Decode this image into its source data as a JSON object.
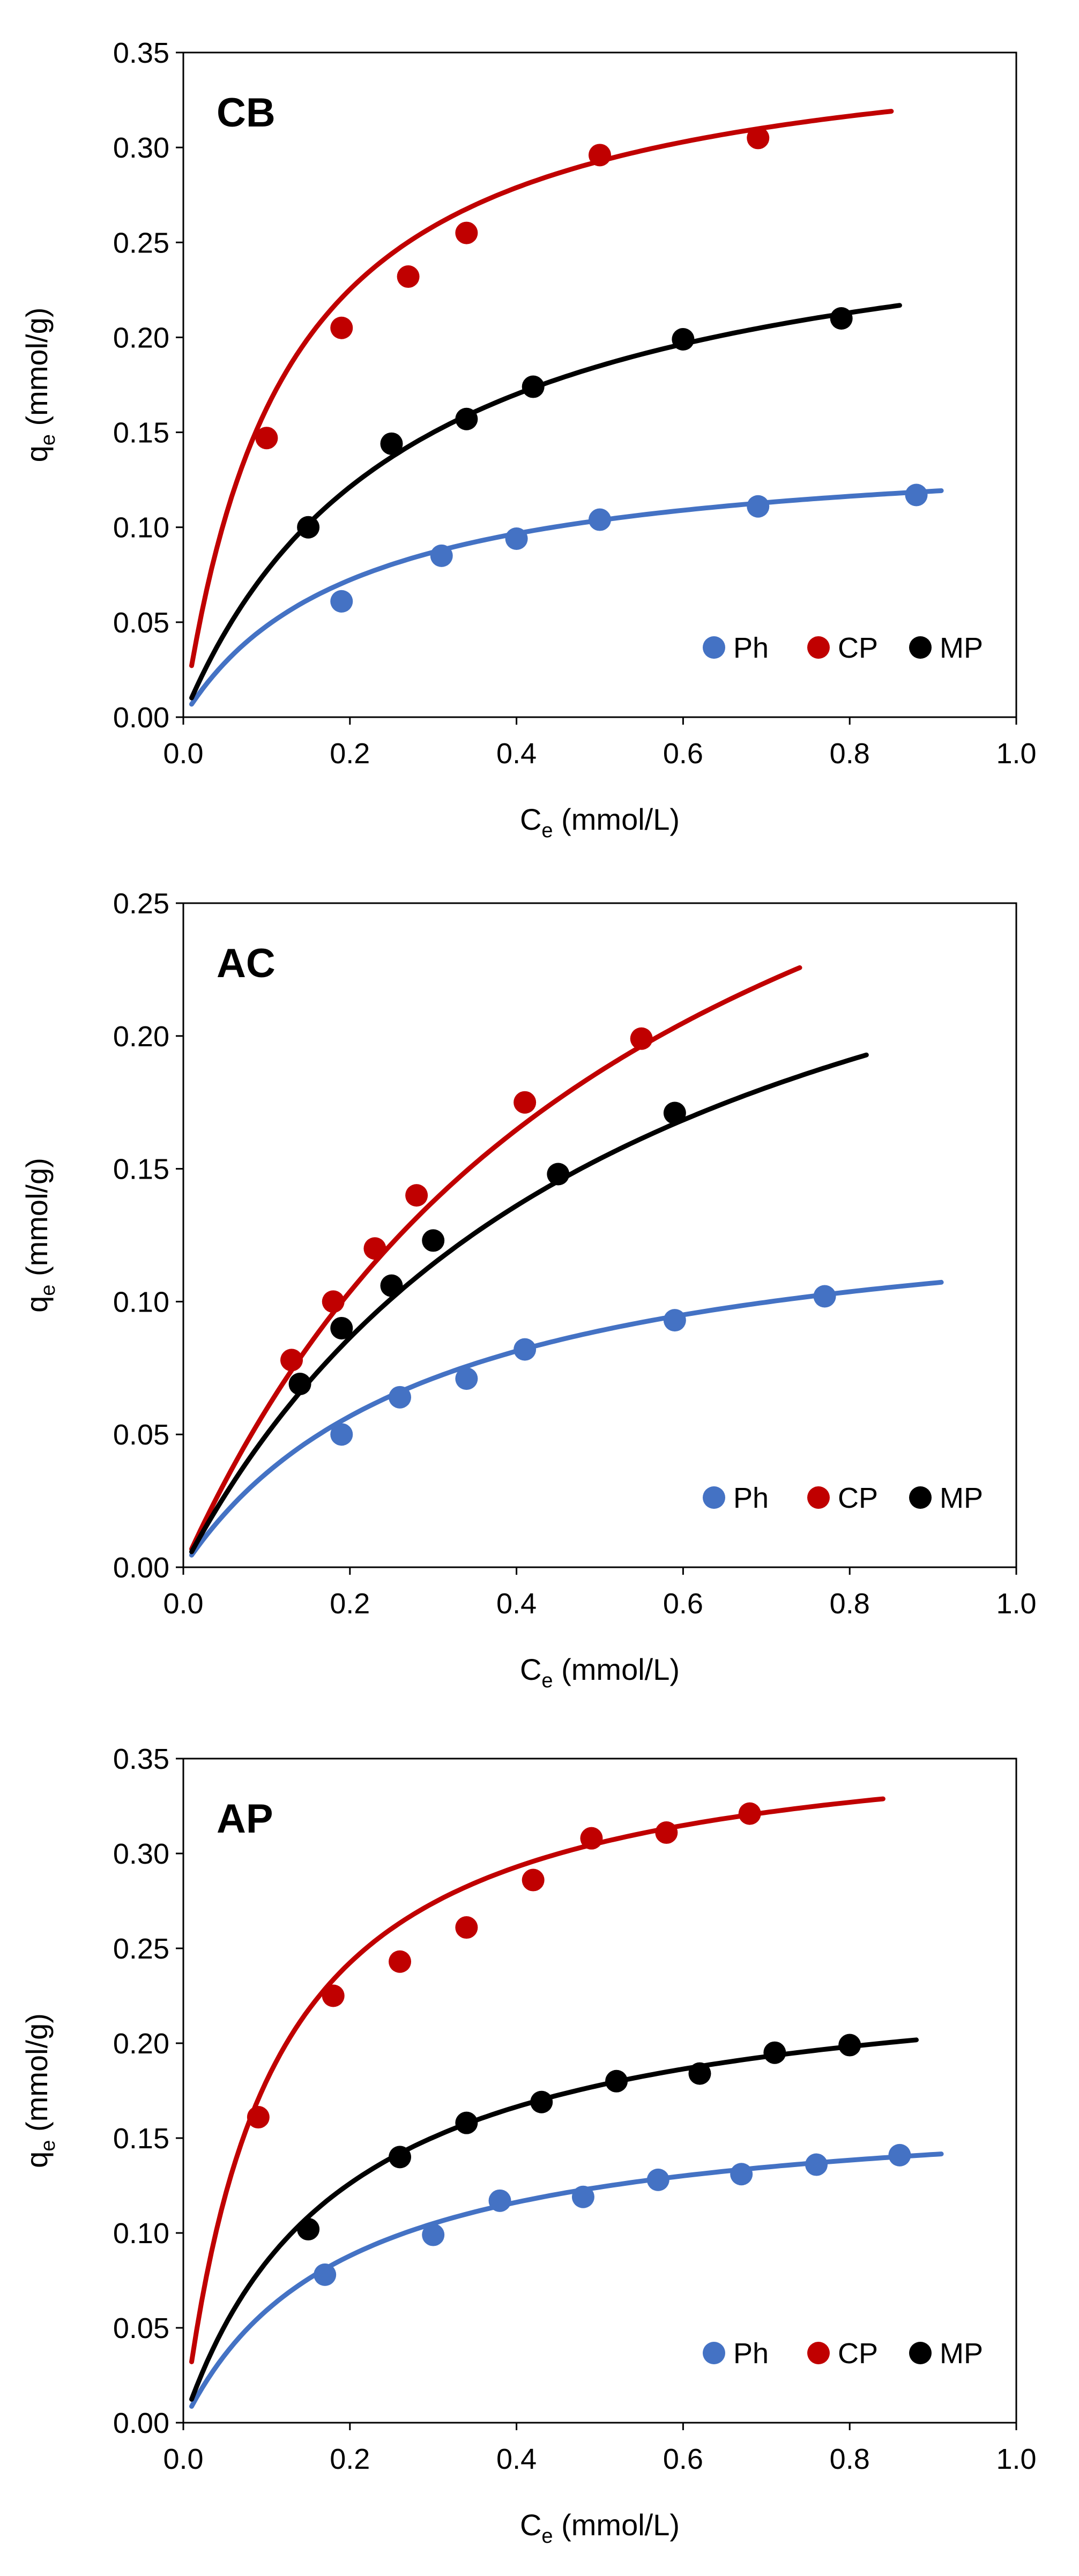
{
  "chart_data": [
    {
      "type": "scatter",
      "title": "CB",
      "xlabel_main": "C",
      "xlabel_sub": "e",
      "xlabel_rest": " (mmol/L)",
      "ylabel_main": "q",
      "ylabel_sub": "e",
      "ylabel_rest": " (mmol/g)",
      "xlim": [
        0,
        1.0
      ],
      "ylim": [
        0,
        0.35
      ],
      "xticks": [
        "0.0",
        "0.2",
        "0.4",
        "0.6",
        "0.8",
        "1.0"
      ],
      "yticks": [
        "0.00",
        "0.05",
        "0.10",
        "0.15",
        "0.20",
        "0.25",
        "0.30",
        "0.35"
      ],
      "legend_position": "bottom-right",
      "series": [
        {
          "name": "Ph",
          "color": "#4472C4",
          "x": [
            0.19,
            0.31,
            0.4,
            0.5,
            0.69,
            0.88
          ],
          "y": [
            0.061,
            0.085,
            0.094,
            0.104,
            0.111,
            0.117
          ],
          "fit": {
            "qmax": 0.146,
            "K": 4.9,
            "xrange": [
              0.01,
              0.91
            ]
          }
        },
        {
          "name": "CP",
          "color": "#C00000",
          "x": [
            0.1,
            0.19,
            0.27,
            0.34,
            0.5,
            0.69
          ],
          "y": [
            0.147,
            0.205,
            0.232,
            0.255,
            0.296,
            0.305
          ],
          "fit": {
            "qmax": 0.366,
            "K": 8.0,
            "xrange": [
              0.01,
              0.85
            ]
          }
        },
        {
          "name": "MP",
          "color": "#000000",
          "x": [
            0.15,
            0.25,
            0.34,
            0.42,
            0.6,
            0.79
          ],
          "y": [
            0.1,
            0.144,
            0.157,
            0.174,
            0.199,
            0.21
          ],
          "fit": {
            "qmax": 0.285,
            "K": 3.7,
            "xrange": [
              0.01,
              0.86
            ]
          }
        }
      ]
    },
    {
      "type": "scatter",
      "title": "AC",
      "xlabel_main": "C",
      "xlabel_sub": "e",
      "xlabel_rest": " (mmol/L)",
      "ylabel_main": "q",
      "ylabel_sub": "e",
      "ylabel_rest": " (mmol/g)",
      "xlim": [
        0,
        1.0
      ],
      "ylim": [
        0,
        0.25
      ],
      "xticks": [
        "0.0",
        "0.2",
        "0.4",
        "0.6",
        "0.8",
        "1.0"
      ],
      "yticks": [
        "0.00",
        "0.05",
        "0.10",
        "0.15",
        "0.20",
        "0.25"
      ],
      "legend_position": "bottom-right",
      "series": [
        {
          "name": "Ph",
          "color": "#4472C4",
          "x": [
            0.19,
            0.26,
            0.34,
            0.41,
            0.59,
            0.77
          ],
          "y": [
            0.05,
            0.064,
            0.071,
            0.082,
            0.093,
            0.102
          ],
          "fit": {
            "qmax": 0.143,
            "K": 3.3,
            "xrange": [
              0.01,
              0.91
            ]
          }
        },
        {
          "name": "CP",
          "color": "#C00000",
          "x": [
            0.13,
            0.18,
            0.23,
            0.28,
            0.41,
            0.55
          ],
          "y": [
            0.078,
            0.1,
            0.12,
            0.14,
            0.175,
            0.199
          ],
          "fit": {
            "qmax": 0.4,
            "K": 1.75,
            "xrange": [
              0.01,
              0.74
            ]
          }
        },
        {
          "name": "MP",
          "color": "#000000",
          "x": [
            0.14,
            0.19,
            0.25,
            0.3,
            0.45,
            0.59
          ],
          "y": [
            0.069,
            0.09,
            0.106,
            0.123,
            0.148,
            0.171
          ],
          "fit": {
            "qmax": 0.32,
            "K": 1.85,
            "xrange": [
              0.01,
              0.82
            ]
          }
        }
      ]
    },
    {
      "type": "scatter",
      "title": "AP",
      "xlabel_main": "C",
      "xlabel_sub": "e",
      "xlabel_rest": " (mmol/L)",
      "ylabel_main": "q",
      "ylabel_sub": "e",
      "ylabel_rest": " (mmol/g)",
      "xlim": [
        0,
        1.0
      ],
      "ylim": [
        0,
        0.35
      ],
      "xticks": [
        "0.0",
        "0.2",
        "0.4",
        "0.6",
        "0.8",
        "1.0"
      ],
      "yticks": [
        "0.00",
        "0.05",
        "0.10",
        "0.15",
        "0.20",
        "0.25",
        "0.30",
        "0.35"
      ],
      "legend_position": "bottom-right",
      "series": [
        {
          "name": "Ph",
          "color": "#4472C4",
          "x": [
            0.17,
            0.3,
            0.38,
            0.48,
            0.57,
            0.67,
            0.76,
            0.86
          ],
          "y": [
            0.078,
            0.099,
            0.117,
            0.119,
            0.128,
            0.131,
            0.136,
            0.141
          ],
          "fit": {
            "qmax": 0.171,
            "K": 5.3,
            "xrange": [
              0.01,
              0.91
            ]
          }
        },
        {
          "name": "CP",
          "color": "#C00000",
          "x": [
            0.09,
            0.18,
            0.26,
            0.34,
            0.42,
            0.49,
            0.58,
            0.68
          ],
          "y": [
            0.161,
            0.225,
            0.243,
            0.261,
            0.286,
            0.308,
            0.311,
            0.321
          ],
          "fit": {
            "qmax": 0.37,
            "K": 9.5,
            "xrange": [
              0.01,
              0.84
            ]
          }
        },
        {
          "name": "MP",
          "color": "#000000",
          "x": [
            0.15,
            0.26,
            0.34,
            0.43,
            0.52,
            0.62,
            0.71,
            0.8
          ],
          "y": [
            0.102,
            0.14,
            0.158,
            0.169,
            0.18,
            0.184,
            0.195,
            0.199
          ],
          "fit": {
            "qmax": 0.245,
            "K": 5.3,
            "xrange": [
              0.01,
              0.88
            ]
          }
        }
      ]
    }
  ]
}
